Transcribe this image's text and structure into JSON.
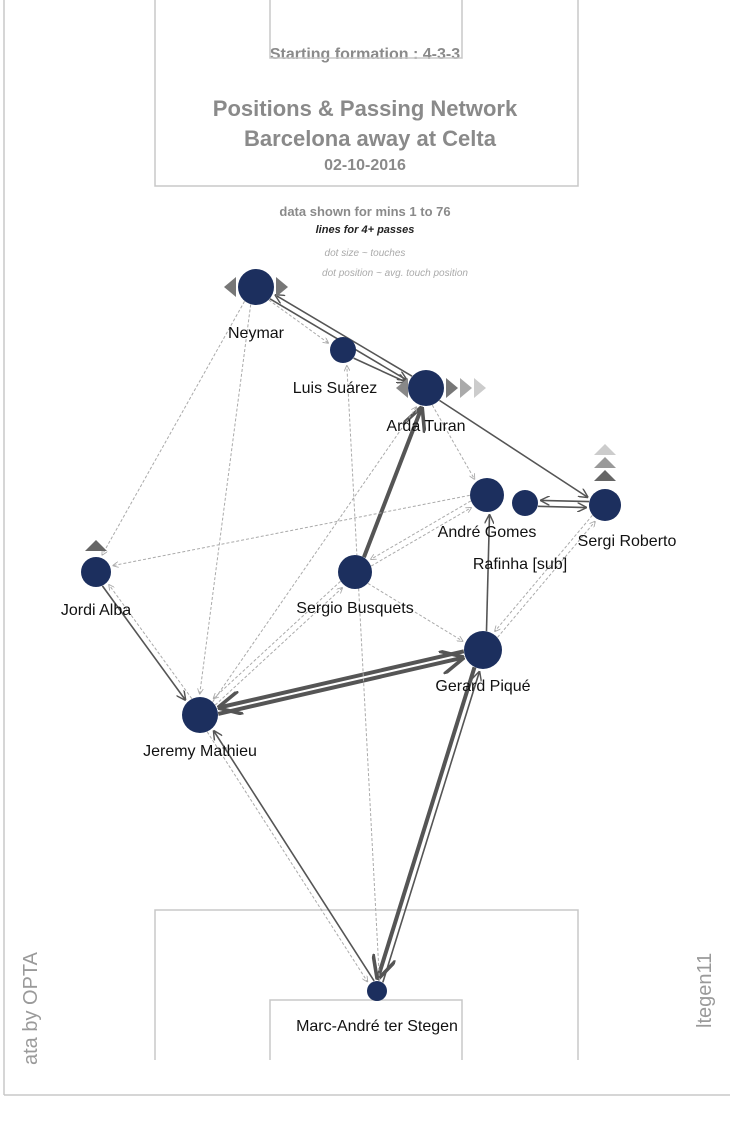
{
  "header": {
    "formation": "Starting formation : 4-3-3",
    "title_line1": "Positions & Passing Network",
    "title_line2": "Barcelona  away at  Celta",
    "date": "02-10-2016"
  },
  "notes": {
    "minutes": "data shown for mins 1 to 76",
    "lines": "lines for 4+ passes",
    "dot_size": "dot size ~ touches",
    "dot_position": "dot position ~ avg. touch position"
  },
  "credits": {
    "source": "ata by OPTA",
    "author": "ltegen11"
  },
  "colors": {
    "dot": "#1c2f5e",
    "line_strong": "#555555",
    "line_light": "#b0b0b0",
    "text": "#8a8a8a"
  },
  "players": [
    {
      "id": "neymar",
      "name": "Neymar"
    },
    {
      "id": "suarez",
      "name": "Luis Suárez"
    },
    {
      "id": "arda",
      "name": "Arda Turan"
    },
    {
      "id": "gomes",
      "name": "André Gomes"
    },
    {
      "id": "rafinha",
      "name": "Rafinha [sub]"
    },
    {
      "id": "roberto",
      "name": "Sergi Roberto"
    },
    {
      "id": "alba",
      "name": "Jordi Alba"
    },
    {
      "id": "busquets",
      "name": "Sergio Busquets"
    },
    {
      "id": "pique",
      "name": "Gerard Piqué"
    },
    {
      "id": "mathieu",
      "name": "Jeremy Mathieu"
    },
    {
      "id": "terstegen",
      "name": "Marc-André ter Stegen"
    }
  ],
  "passes": [
    {
      "from": "pique",
      "to": "mathieu",
      "level": "strong"
    },
    {
      "from": "mathieu",
      "to": "pique",
      "level": "strong"
    },
    {
      "from": "pique",
      "to": "terstegen",
      "level": "strong"
    },
    {
      "from": "busquets",
      "to": "arda",
      "level": "strong"
    },
    {
      "from": "pique",
      "to": "gomes",
      "level": "medium"
    },
    {
      "from": "neymar",
      "to": "arda",
      "level": "medium"
    },
    {
      "from": "arda",
      "to": "neymar",
      "level": "medium"
    },
    {
      "from": "arda",
      "to": "roberto",
      "level": "medium"
    },
    {
      "from": "rafinha",
      "to": "roberto",
      "level": "medium"
    },
    {
      "from": "roberto",
      "to": "rafinha",
      "level": "medium"
    },
    {
      "from": "alba",
      "to": "mathieu",
      "level": "medium"
    },
    {
      "from": "terstegen",
      "to": "mathieu",
      "level": "medium"
    },
    {
      "from": "mathieu",
      "to": "terstegen",
      "level": "light"
    },
    {
      "from": "terstegen",
      "to": "pique",
      "level": "medium"
    },
    {
      "from": "neymar",
      "to": "mathieu",
      "level": "light"
    },
    {
      "from": "neymar",
      "to": "alba",
      "level": "light"
    },
    {
      "from": "mathieu",
      "to": "alba",
      "level": "light"
    },
    {
      "from": "mathieu",
      "to": "busquets",
      "level": "light"
    },
    {
      "from": "busquets",
      "to": "mathieu",
      "level": "light"
    },
    {
      "from": "busquets",
      "to": "pique",
      "level": "light"
    },
    {
      "from": "gomes",
      "to": "alba",
      "level": "light"
    },
    {
      "from": "gomes",
      "to": "busquets",
      "level": "light"
    },
    {
      "from": "busquets",
      "to": "gomes",
      "level": "light"
    },
    {
      "from": "arda",
      "to": "gomes",
      "level": "light"
    },
    {
      "from": "pique",
      "to": "roberto",
      "level": "light"
    },
    {
      "from": "roberto",
      "to": "pique",
      "level": "light"
    },
    {
      "from": "terstegen",
      "to": "suarez",
      "level": "light"
    },
    {
      "from": "suarez",
      "to": "arda",
      "level": "medium"
    },
    {
      "from": "mathieu",
      "to": "arda",
      "level": "light"
    },
    {
      "from": "neymar",
      "to": "suarez",
      "level": "light"
    }
  ]
}
